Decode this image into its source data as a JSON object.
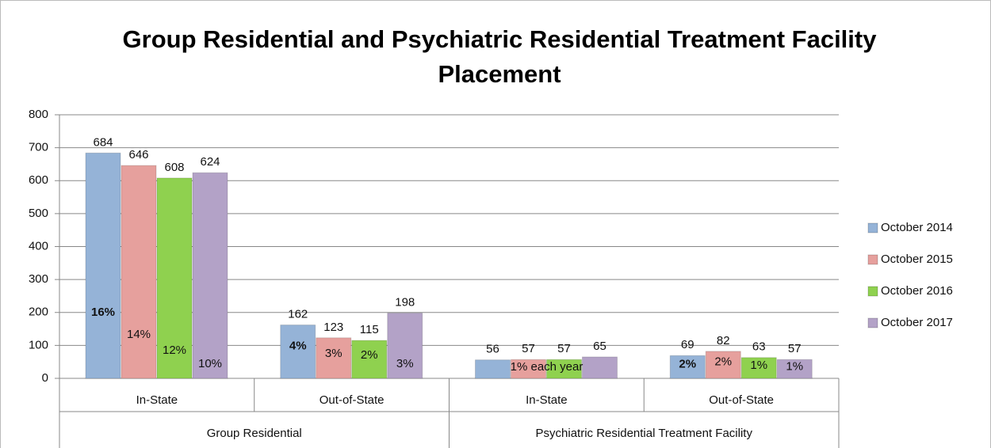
{
  "chart_data": {
    "type": "bar",
    "title": "Group Residential and Psychiatric Residential Treatment Facility Placement",
    "categories": [
      "In-State",
      "Out-of-State",
      "In-State",
      "Out-of-State"
    ],
    "groups": [
      {
        "name": "Group Residential",
        "categories": 2
      },
      {
        "name": "Psychiatric Residential Treatment Facility",
        "categories": 2
      }
    ],
    "series": [
      {
        "name": "October 2014",
        "color": "#95b3d7",
        "values": [
          684,
          162,
          56,
          69
        ],
        "percent_labels": [
          "16%",
          "4%",
          null,
          "2%"
        ]
      },
      {
        "name": "October 2015",
        "color": "#e6a09d",
        "values": [
          646,
          123,
          57,
          82
        ],
        "percent_labels": [
          "14%",
          "3%",
          null,
          "2%"
        ]
      },
      {
        "name": "October 2016",
        "color": "#8fd14f",
        "values": [
          608,
          115,
          57,
          63
        ],
        "percent_labels": [
          "12%",
          "2%",
          null,
          "1%"
        ]
      },
      {
        "name": "October 2017",
        "color": "#b3a2c7",
        "values": [
          624,
          198,
          65,
          57
        ],
        "percent_labels": [
          "10%",
          "3%",
          null,
          "1%"
        ]
      }
    ],
    "annotations": [
      "1% each year"
    ],
    "ylim": [
      0,
      800
    ],
    "yticks": [
      0,
      100,
      200,
      300,
      400,
      500,
      600,
      700,
      800
    ],
    "grid": true,
    "legend": "right"
  }
}
